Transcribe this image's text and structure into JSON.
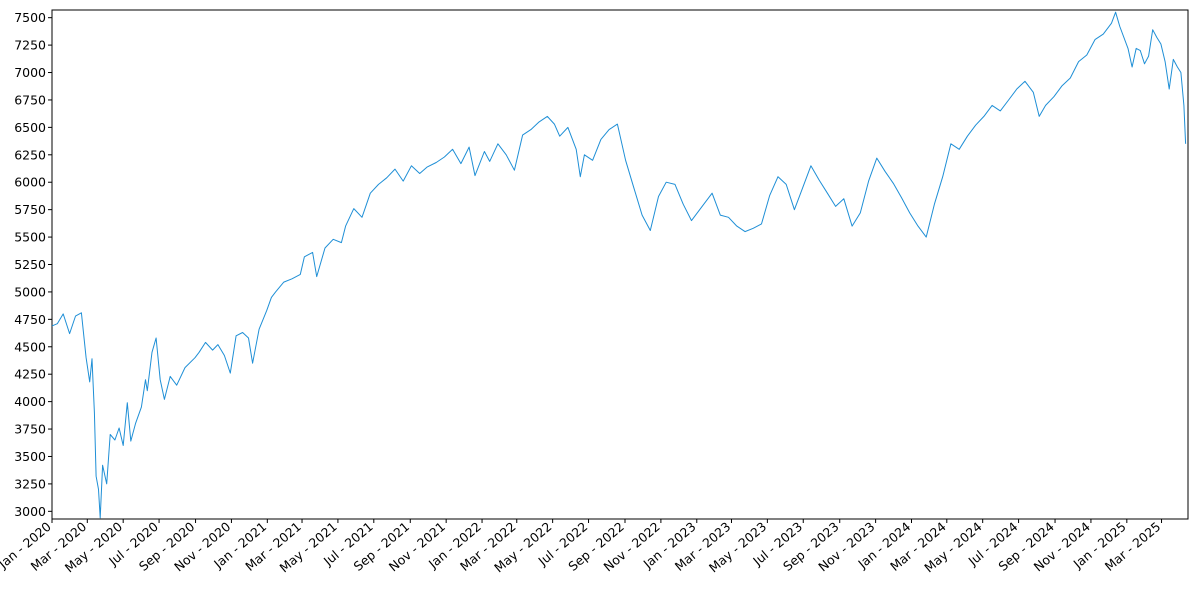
{
  "chart_data": {
    "type": "line",
    "title": "",
    "xlabel": "",
    "ylabel": "",
    "ylim": [
      2930,
      7570
    ],
    "xlim": [
      "2020-01-01",
      "2025-04-15"
    ],
    "grid": false,
    "line_color": "#1f8fd6",
    "y_ticks": [
      3000,
      3250,
      3500,
      3750,
      4000,
      4250,
      4500,
      4750,
      5000,
      5250,
      5500,
      5750,
      6000,
      6250,
      6500,
      6750,
      7000,
      7250,
      7500
    ],
    "x_ticks": [
      {
        "date": "2020-01-01",
        "label": "Jan - 2020"
      },
      {
        "date": "2020-03-01",
        "label": "Mar - 2020"
      },
      {
        "date": "2020-05-01",
        "label": "May - 2020"
      },
      {
        "date": "2020-07-01",
        "label": "Jul - 2020"
      },
      {
        "date": "2020-09-01",
        "label": "Sep - 2020"
      },
      {
        "date": "2020-11-01",
        "label": "Nov - 2020"
      },
      {
        "date": "2021-01-01",
        "label": "Jan - 2021"
      },
      {
        "date": "2021-03-01",
        "label": "Mar - 2021"
      },
      {
        "date": "2021-05-01",
        "label": "May - 2021"
      },
      {
        "date": "2021-07-01",
        "label": "Jul - 2021"
      },
      {
        "date": "2021-09-01",
        "label": "Sep - 2021"
      },
      {
        "date": "2021-11-01",
        "label": "Nov - 2021"
      },
      {
        "date": "2022-01-01",
        "label": "Jan - 2022"
      },
      {
        "date": "2022-03-01",
        "label": "Mar - 2022"
      },
      {
        "date": "2022-05-01",
        "label": "May - 2022"
      },
      {
        "date": "2022-07-01",
        "label": "Jul - 2022"
      },
      {
        "date": "2022-09-01",
        "label": "Sep - 2022"
      },
      {
        "date": "2022-11-01",
        "label": "Nov - 2022"
      },
      {
        "date": "2023-01-01",
        "label": "Jan - 2023"
      },
      {
        "date": "2023-03-01",
        "label": "Mar - 2023"
      },
      {
        "date": "2023-05-01",
        "label": "May - 2023"
      },
      {
        "date": "2023-07-01",
        "label": "Jul - 2023"
      },
      {
        "date": "2023-09-01",
        "label": "Sep - 2023"
      },
      {
        "date": "2023-11-01",
        "label": "Nov - 2023"
      },
      {
        "date": "2024-01-01",
        "label": "Jan - 2024"
      },
      {
        "date": "2024-03-01",
        "label": "Mar - 2024"
      },
      {
        "date": "2024-05-01",
        "label": "May - 2024"
      },
      {
        "date": "2024-07-01",
        "label": "Jul - 2024"
      },
      {
        "date": "2024-09-01",
        "label": "Sep - 2024"
      },
      {
        "date": "2024-11-01",
        "label": "Nov - 2024"
      },
      {
        "date": "2025-01-01",
        "label": "Jan - 2025"
      },
      {
        "date": "2025-03-01",
        "label": "Mar - 2025"
      }
    ],
    "series": [
      {
        "points": [
          [
            "2020-01-01",
            4690
          ],
          [
            "2020-01-10",
            4710
          ],
          [
            "2020-01-20",
            4800
          ],
          [
            "2020-01-31",
            4620
          ],
          [
            "2020-02-10",
            4780
          ],
          [
            "2020-02-20",
            4810
          ],
          [
            "2020-02-28",
            4400
          ],
          [
            "2020-03-05",
            4180
          ],
          [
            "2020-03-09",
            4390
          ],
          [
            "2020-03-13",
            3900
          ],
          [
            "2020-03-16",
            3320
          ],
          [
            "2020-03-20",
            3200
          ],
          [
            "2020-03-23",
            2940
          ],
          [
            "2020-03-27",
            3420
          ],
          [
            "2020-04-03",
            3250
          ],
          [
            "2020-04-09",
            3700
          ],
          [
            "2020-04-17",
            3650
          ],
          [
            "2020-04-24",
            3760
          ],
          [
            "2020-05-01",
            3600
          ],
          [
            "2020-05-08",
            3990
          ],
          [
            "2020-05-14",
            3640
          ],
          [
            "2020-05-22",
            3800
          ],
          [
            "2020-06-01",
            3950
          ],
          [
            "2020-06-08",
            4200
          ],
          [
            "2020-06-11",
            4100
          ],
          [
            "2020-06-19",
            4450
          ],
          [
            "2020-06-26",
            4580
          ],
          [
            "2020-07-03",
            4200
          ],
          [
            "2020-07-10",
            4020
          ],
          [
            "2020-07-20",
            4230
          ],
          [
            "2020-07-31",
            4150
          ],
          [
            "2020-08-14",
            4310
          ],
          [
            "2020-08-31",
            4400
          ],
          [
            "2020-09-07",
            4450
          ],
          [
            "2020-09-18",
            4540
          ],
          [
            "2020-09-30",
            4470
          ],
          [
            "2020-10-09",
            4520
          ],
          [
            "2020-10-20",
            4420
          ],
          [
            "2020-10-30",
            4260
          ],
          [
            "2020-11-09",
            4600
          ],
          [
            "2020-11-20",
            4630
          ],
          [
            "2020-11-30",
            4580
          ],
          [
            "2020-12-07",
            4350
          ],
          [
            "2020-12-18",
            4660
          ],
          [
            "2020-12-31",
            4830
          ],
          [
            "2021-01-08",
            4950
          ],
          [
            "2021-01-15",
            5000
          ],
          [
            "2021-01-29",
            5090
          ],
          [
            "2021-02-12",
            5120
          ],
          [
            "2021-02-26",
            5160
          ],
          [
            "2021-03-05",
            5320
          ],
          [
            "2021-03-19",
            5360
          ],
          [
            "2021-03-26",
            5140
          ],
          [
            "2021-04-09",
            5400
          ],
          [
            "2021-04-23",
            5480
          ],
          [
            "2021-05-07",
            5450
          ],
          [
            "2021-05-14",
            5600
          ],
          [
            "2021-05-28",
            5760
          ],
          [
            "2021-06-11",
            5680
          ],
          [
            "2021-06-25",
            5900
          ],
          [
            "2021-07-09",
            5980
          ],
          [
            "2021-07-23",
            6040
          ],
          [
            "2021-08-06",
            6120
          ],
          [
            "2021-08-20",
            6010
          ],
          [
            "2021-09-03",
            6150
          ],
          [
            "2021-09-17",
            6080
          ],
          [
            "2021-09-30",
            6140
          ],
          [
            "2021-10-15",
            6180
          ],
          [
            "2021-10-29",
            6230
          ],
          [
            "2021-11-12",
            6300
          ],
          [
            "2021-11-26",
            6170
          ],
          [
            "2021-12-10",
            6320
          ],
          [
            "2021-12-20",
            6060
          ],
          [
            "2022-01-05",
            6280
          ],
          [
            "2022-01-14",
            6190
          ],
          [
            "2022-01-28",
            6350
          ],
          [
            "2022-02-11",
            6250
          ],
          [
            "2022-02-25",
            6110
          ],
          [
            "2022-03-11",
            6430
          ],
          [
            "2022-03-25",
            6480
          ],
          [
            "2022-04-08",
            6550
          ],
          [
            "2022-04-22",
            6600
          ],
          [
            "2022-05-04",
            6530
          ],
          [
            "2022-05-13",
            6420
          ],
          [
            "2022-05-27",
            6500
          ],
          [
            "2022-06-10",
            6300
          ],
          [
            "2022-06-17",
            6050
          ],
          [
            "2022-06-24",
            6250
          ],
          [
            "2022-07-08",
            6200
          ],
          [
            "2022-07-22",
            6390
          ],
          [
            "2022-08-05",
            6480
          ],
          [
            "2022-08-19",
            6530
          ],
          [
            "2022-09-02",
            6200
          ],
          [
            "2022-09-16",
            5950
          ],
          [
            "2022-09-30",
            5700
          ],
          [
            "2022-10-14",
            5560
          ],
          [
            "2022-10-28",
            5870
          ],
          [
            "2022-11-10",
            6000
          ],
          [
            "2022-11-25",
            5980
          ],
          [
            "2022-12-09",
            5800
          ],
          [
            "2022-12-23",
            5650
          ],
          [
            "2023-01-13",
            5800
          ],
          [
            "2023-01-27",
            5900
          ],
          [
            "2023-02-10",
            5700
          ],
          [
            "2023-02-24",
            5680
          ],
          [
            "2023-03-10",
            5600
          ],
          [
            "2023-03-24",
            5550
          ],
          [
            "2023-04-07",
            5580
          ],
          [
            "2023-04-21",
            5620
          ],
          [
            "2023-05-05",
            5880
          ],
          [
            "2023-05-19",
            6050
          ],
          [
            "2023-06-02",
            5980
          ],
          [
            "2023-06-16",
            5750
          ],
          [
            "2023-06-30",
            5950
          ],
          [
            "2023-07-14",
            6150
          ],
          [
            "2023-07-28",
            6020
          ],
          [
            "2023-08-11",
            5900
          ],
          [
            "2023-08-25",
            5780
          ],
          [
            "2023-09-08",
            5850
          ],
          [
            "2023-09-22",
            5600
          ],
          [
            "2023-10-06",
            5720
          ],
          [
            "2023-10-20",
            6010
          ],
          [
            "2023-11-03",
            6220
          ],
          [
            "2023-11-17",
            6100
          ],
          [
            "2023-12-01",
            5990
          ],
          [
            "2023-12-15",
            5860
          ],
          [
            "2023-12-29",
            5720
          ],
          [
            "2024-01-12",
            5600
          ],
          [
            "2024-01-26",
            5500
          ],
          [
            "2024-02-09",
            5800
          ],
          [
            "2024-02-23",
            6050
          ],
          [
            "2024-03-08",
            6350
          ],
          [
            "2024-03-22",
            6300
          ],
          [
            "2024-04-05",
            6420
          ],
          [
            "2024-04-19",
            6520
          ],
          [
            "2024-05-03",
            6600
          ],
          [
            "2024-05-17",
            6700
          ],
          [
            "2024-05-31",
            6650
          ],
          [
            "2024-06-14",
            6750
          ],
          [
            "2024-06-28",
            6850
          ],
          [
            "2024-07-12",
            6920
          ],
          [
            "2024-07-26",
            6820
          ],
          [
            "2024-08-05",
            6600
          ],
          [
            "2024-08-16",
            6700
          ],
          [
            "2024-08-30",
            6780
          ],
          [
            "2024-09-13",
            6880
          ],
          [
            "2024-09-27",
            6950
          ],
          [
            "2024-10-11",
            7100
          ],
          [
            "2024-10-25",
            7160
          ],
          [
            "2024-11-08",
            7300
          ],
          [
            "2024-11-22",
            7350
          ],
          [
            "2024-12-06",
            7450
          ],
          [
            "2024-12-13",
            7550
          ],
          [
            "2024-12-20",
            7420
          ],
          [
            "2025-01-03",
            7220
          ],
          [
            "2025-01-10",
            7050
          ],
          [
            "2025-01-17",
            7220
          ],
          [
            "2025-01-24",
            7200
          ],
          [
            "2025-01-31",
            7080
          ],
          [
            "2025-02-07",
            7150
          ],
          [
            "2025-02-14",
            7390
          ],
          [
            "2025-02-21",
            7320
          ],
          [
            "2025-02-28",
            7260
          ],
          [
            "2025-03-07",
            7100
          ],
          [
            "2025-03-14",
            6850
          ],
          [
            "2025-03-21",
            7120
          ],
          [
            "2025-03-28",
            7050
          ],
          [
            "2025-04-03",
            7000
          ],
          [
            "2025-04-08",
            6700
          ],
          [
            "2025-04-11",
            6350
          ]
        ]
      }
    ]
  }
}
